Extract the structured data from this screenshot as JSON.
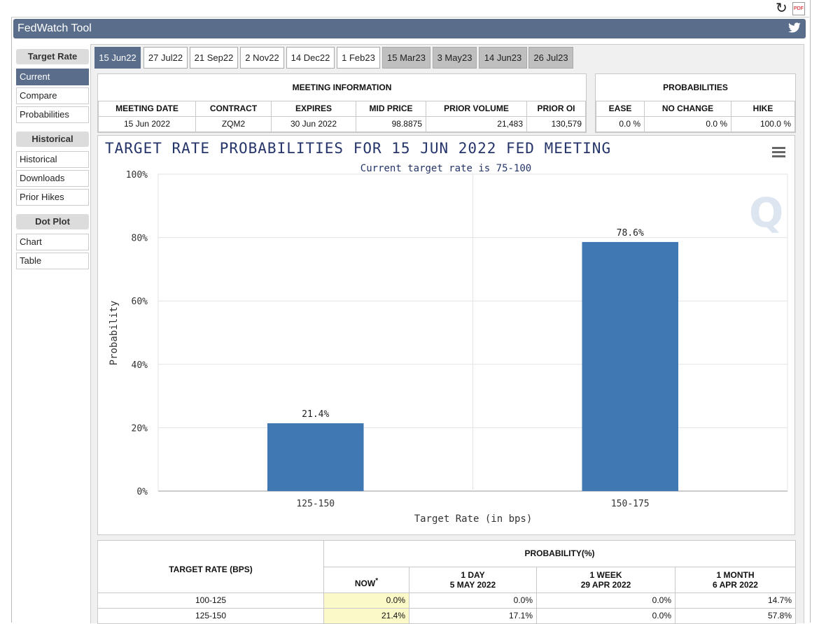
{
  "app": {
    "title": "FedWatch Tool"
  },
  "toolbar": {
    "refresh_icon": "refresh-icon",
    "pdf_icon": "pdf-icon",
    "twitter_icon": "twitter-icon"
  },
  "sidebar": {
    "sections": [
      {
        "header": "Target Rate",
        "items": [
          {
            "label": "Current",
            "active": true
          },
          {
            "label": "Compare"
          },
          {
            "label": "Probabilities"
          }
        ]
      },
      {
        "header": "Historical",
        "items": [
          {
            "label": "Historical"
          },
          {
            "label": "Downloads"
          },
          {
            "label": "Prior Hikes"
          }
        ]
      },
      {
        "header": "Dot Plot",
        "items": [
          {
            "label": "Chart"
          },
          {
            "label": "Table"
          }
        ]
      }
    ]
  },
  "tabs": [
    {
      "label": "15 Jun22",
      "state": "selected"
    },
    {
      "label": "27 Jul22",
      "state": "normal"
    },
    {
      "label": "21 Sep22",
      "state": "normal"
    },
    {
      "label": "2 Nov22",
      "state": "normal"
    },
    {
      "label": "14 Dec22",
      "state": "normal"
    },
    {
      "label": "1 Feb23",
      "state": "normal"
    },
    {
      "label": "15 Mar23",
      "state": "grey"
    },
    {
      "label": "3 May23",
      "state": "grey"
    },
    {
      "label": "14 Jun23",
      "state": "grey"
    },
    {
      "label": "26 Jul23",
      "state": "grey"
    }
  ],
  "meeting_info": {
    "title": "MEETING INFORMATION",
    "headers": [
      "MEETING DATE",
      "CONTRACT",
      "EXPIRES",
      "MID PRICE",
      "PRIOR VOLUME",
      "PRIOR OI"
    ],
    "values": [
      "15 Jun 2022",
      "ZQM2",
      "30 Jun 2022",
      "98.8875",
      "21,483",
      "130,579"
    ]
  },
  "probabilities": {
    "title": "PROBABILITIES",
    "headers": [
      "EASE",
      "NO CHANGE",
      "HIKE"
    ],
    "values": [
      "0.0 %",
      "0.0 %",
      "100.0 %"
    ]
  },
  "chart_data": {
    "type": "bar",
    "title": "TARGET RATE PROBABILITIES FOR 15 JUN 2022 FED MEETING",
    "subtitle": "Current target rate is 75-100",
    "xlabel": "Target Rate (in bps)",
    "ylabel": "Probability",
    "categories": [
      "125-150",
      "150-175"
    ],
    "values": [
      21.4,
      78.6
    ],
    "value_labels": [
      "21.4%",
      "78.6%"
    ],
    "ylim": [
      0,
      100
    ],
    "yticks": [
      "0%",
      "20%",
      "40%",
      "60%",
      "80%",
      "100%"
    ],
    "grid": true,
    "bar_color": "#3f78b2"
  },
  "prob_table": {
    "col_header": "TARGET RATE (BPS)",
    "group_header": "PROBABILITY(%)",
    "now_label": "NOW",
    "now_mark": "*",
    "period_cols": [
      {
        "line1": "1 DAY",
        "line2": "5 MAY 2022"
      },
      {
        "line1": "1 WEEK",
        "line2": "29 APR 2022"
      },
      {
        "line1": "1 MONTH",
        "line2": "6 APR 2022"
      }
    ],
    "rows": [
      {
        "rate": "100-125",
        "now": "0.0%",
        "day": "0.0%",
        "week": "0.0%",
        "month": "14.7%"
      },
      {
        "rate": "125-150",
        "now": "21.4%",
        "day": "17.1%",
        "week": "0.0%",
        "month": "57.8%"
      }
    ]
  }
}
